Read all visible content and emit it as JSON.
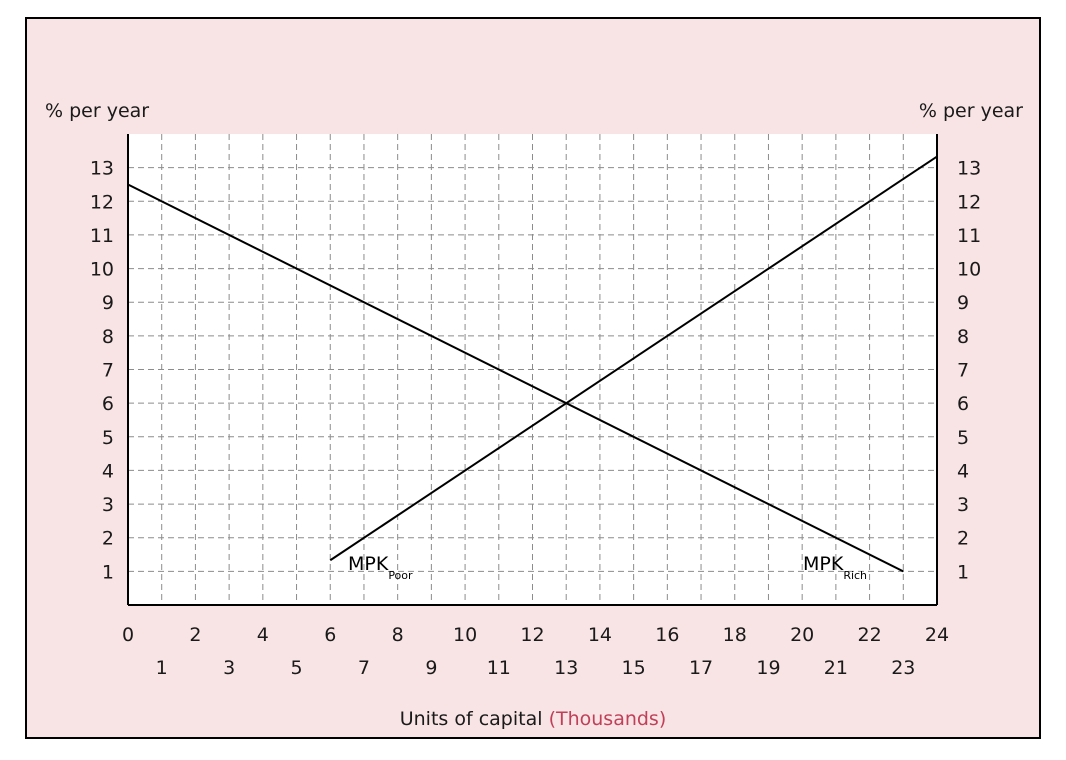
{
  "colors": {
    "frame_background": "#f8e4e4",
    "plot_background": "#ffffff",
    "line": "#000000",
    "grid": "#8c8c8c",
    "accent": "#c0405a"
  },
  "chart_data": {
    "type": "line",
    "ylabel_left": "% per year",
    "ylabel_right": "% per year",
    "xlabel": "Units of capital",
    "xlabel_accent": "(Thousands)",
    "xlim": [
      0,
      24
    ],
    "ylim": [
      0,
      14
    ],
    "x_ticks_even": [
      "0",
      "2",
      "4",
      "6",
      "8",
      "10",
      "12",
      "14",
      "16",
      "18",
      "20",
      "22",
      "24"
    ],
    "x_ticks_odd": [
      "1",
      "3",
      "5",
      "7",
      "9",
      "11",
      "13",
      "15",
      "17",
      "19",
      "21",
      "23"
    ],
    "y_ticks": [
      "1",
      "2",
      "3",
      "4",
      "5",
      "6",
      "7",
      "8",
      "9",
      "10",
      "11",
      "12",
      "13"
    ],
    "grid": "dashed",
    "series": [
      {
        "name": "MPK",
        "subscript": "Rich",
        "x": [
          0,
          23
        ],
        "y": [
          12.5,
          1
        ]
      },
      {
        "name": "MPK",
        "subscript": "Poor",
        "x": [
          6,
          24
        ],
        "y": [
          1.33,
          13.33
        ]
      }
    ]
  }
}
